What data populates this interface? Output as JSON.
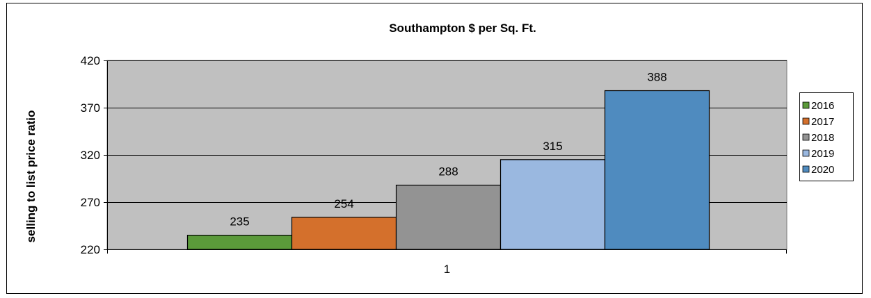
{
  "chart_data": {
    "type": "bar",
    "title": "Southampton $ per Sq. Ft.",
    "ylabel": "selling to list price ratio",
    "xlabel": "",
    "categories": [
      "1"
    ],
    "ylim": [
      220,
      420
    ],
    "yticks": [
      220,
      270,
      320,
      370,
      420
    ],
    "grid": true,
    "legend_position": "right",
    "series": [
      {
        "name": "2016",
        "values": [
          235
        ],
        "color": "#5b9a3a"
      },
      {
        "name": "2017",
        "values": [
          254
        ],
        "color": "#d4702c"
      },
      {
        "name": "2018",
        "values": [
          288
        ],
        "color": "#939393"
      },
      {
        "name": "2019",
        "values": [
          315
        ],
        "color": "#9ab8e0"
      },
      {
        "name": "2020",
        "values": [
          388
        ],
        "color": "#4f8bbf"
      }
    ],
    "data_labels": [
      "235",
      "254",
      "288",
      "315",
      "388"
    ],
    "plot_background": "#c0c0c0"
  }
}
